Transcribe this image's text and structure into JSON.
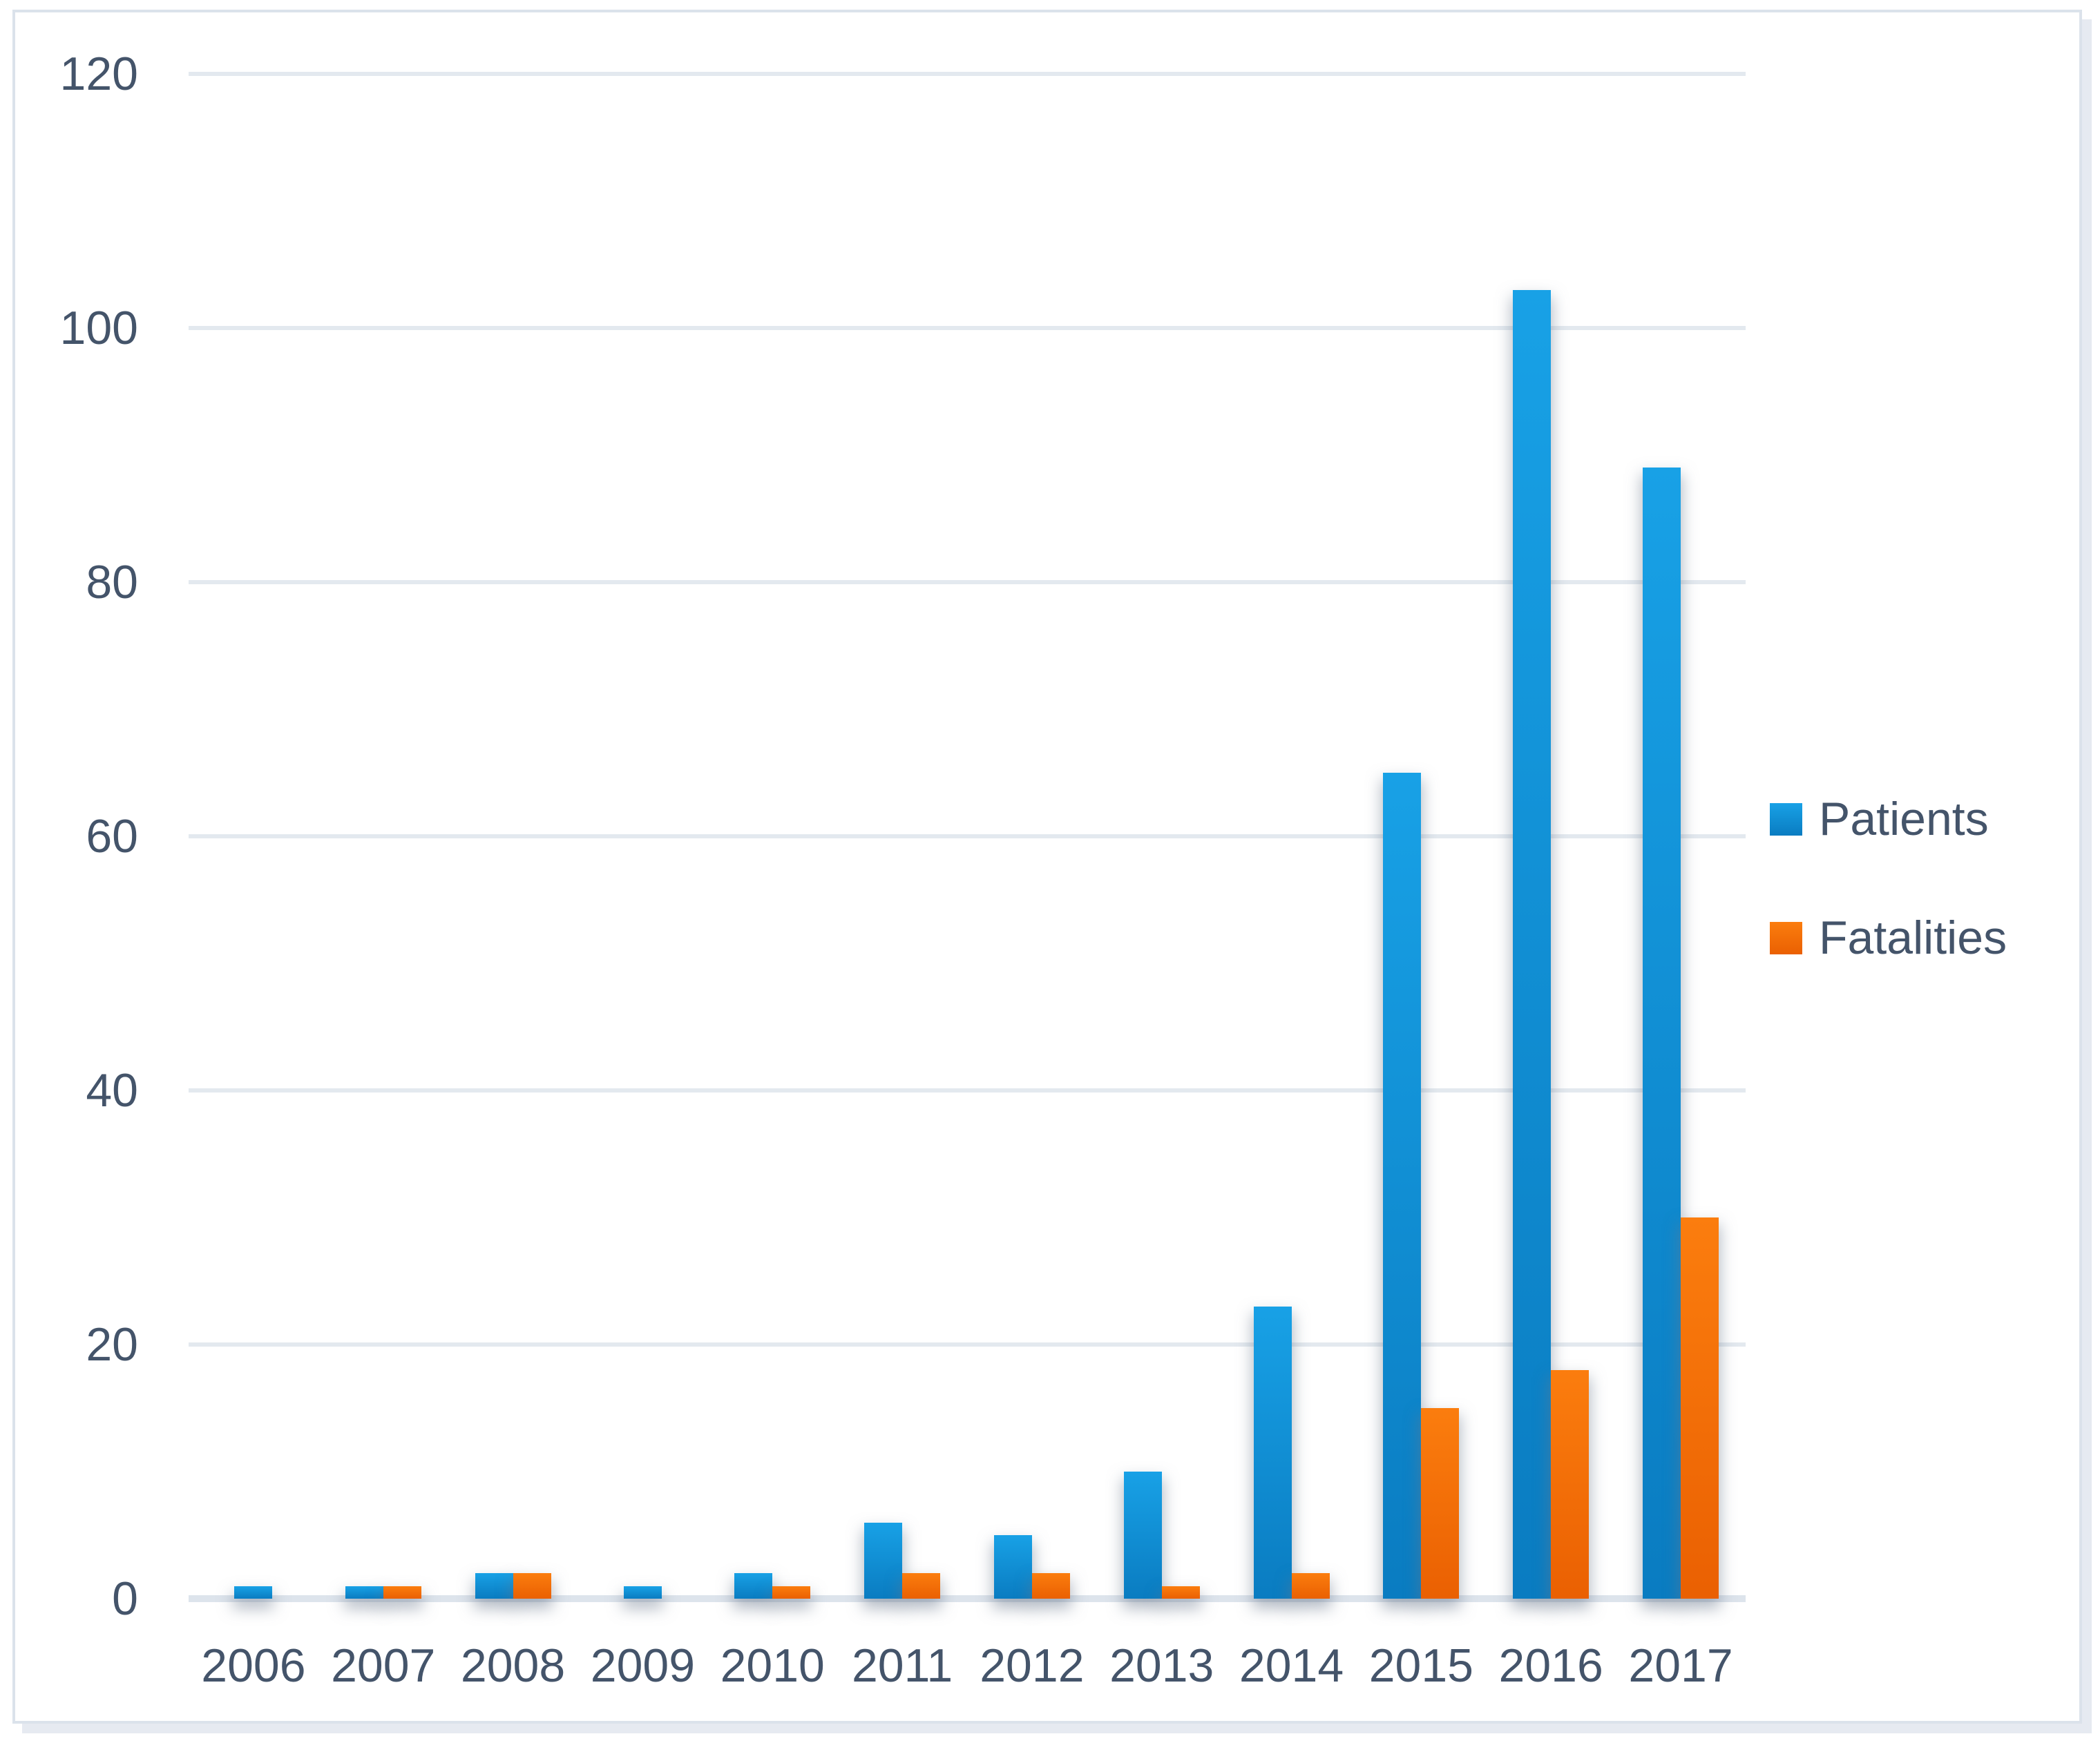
{
  "chart_data": {
    "type": "bar",
    "title": "",
    "categories": [
      "2006",
      "2007",
      "2008",
      "2009",
      "2010",
      "2011",
      "2012",
      "2013",
      "2014",
      "2015",
      "2016",
      "2017"
    ],
    "series": [
      {
        "name": "Patients",
        "values": [
          1,
          1,
          2,
          1,
          2,
          6,
          5,
          10,
          23,
          65,
          103,
          89
        ],
        "color_top": "#18a1e6",
        "color_bottom": "#0a7cc1"
      },
      {
        "name": "Fatalities",
        "values": [
          0,
          1,
          2,
          0,
          1,
          2,
          2,
          1,
          2,
          15,
          18,
          30
        ],
        "color_top": "#fb7d0e",
        "color_bottom": "#ea6002"
      }
    ],
    "y_axis": {
      "min": 0,
      "max": 120,
      "step": 20,
      "ticks": [
        "0",
        "20",
        "40",
        "60",
        "80",
        "100",
        "120"
      ]
    },
    "xlabel": "",
    "ylabel": "",
    "grid": true,
    "legend_position": "right"
  },
  "colors": {
    "axis_text": "#44546A",
    "gridline": "#e3e9ef",
    "baseline": "#dde4ec",
    "frame_border": "#dbe2eb",
    "frame_shadow": "#e6eaf1",
    "background": "#ffffff"
  }
}
